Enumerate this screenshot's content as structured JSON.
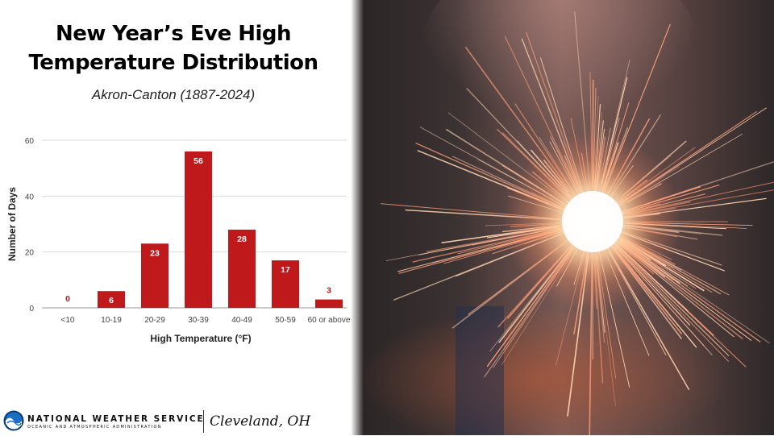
{
  "header": {
    "title_line1": "New Year’s Eve High",
    "title_line2": "Temperature Distribution",
    "subtitle": "Akron-Canton (1887-2024)"
  },
  "chart_data": {
    "type": "bar",
    "title": "New Year’s Eve High Temperature Distribution",
    "subtitle": "Akron-Canton (1887-2024)",
    "categories": [
      "<10",
      "10-19",
      "20-29",
      "30-39",
      "40-49",
      "50-59",
      "60 or above"
    ],
    "values": [
      0,
      6,
      23,
      56,
      28,
      17,
      3
    ],
    "data_labels": [
      "0",
      "6",
      "23",
      "56",
      "28",
      "17",
      "3"
    ],
    "xlabel": "High Temperature (°F)",
    "ylabel": "Number of Days",
    "ylim": [
      0,
      60
    ],
    "yticks": [
      0,
      20,
      40,
      60
    ],
    "grid": true,
    "bar_color": "#c0191c"
  },
  "footer": {
    "agency_name": "NATIONAL WEATHER SERVICE",
    "agency_sub": "OCEANIC AND ATMOSPHERIC ADMINISTRATION",
    "office": "Cleveland, OH",
    "logo_icon": "noaa-logo-icon"
  },
  "photo": {
    "icon": "sparkler-photo"
  }
}
